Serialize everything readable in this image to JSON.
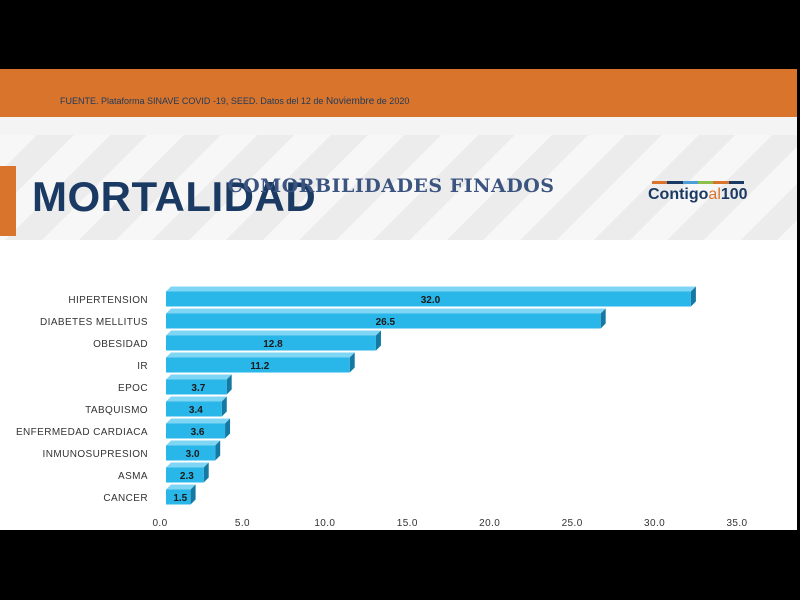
{
  "header": {
    "source_prefix": "FUENTE. Plataforma SINAVE COVID -19, SEED. Datos del 12 de ",
    "source_highlight": "Noviembre",
    "source_suffix": " de 2020",
    "title": "MORTALIDAD"
  },
  "logo": {
    "text_main": "Contigo",
    "text_accent": "al",
    "text_number": "100",
    "bar_colors": [
      "#d8742c",
      "#1b3a63",
      "#4a9fd6",
      "#8cc04a",
      "#d8742c",
      "#1b3a63"
    ]
  },
  "colors": {
    "bar_front": "#29b6e8",
    "bar_top": "#7fd6f4",
    "bar_side": "#1679a3",
    "title_navy": "#1b3a63",
    "accent_orange": "#d8742c"
  },
  "chart_data": {
    "type": "bar",
    "orientation": "horizontal",
    "title": "COMORBILIDADES FINADOS",
    "categories": [
      "HIPERTENSION",
      "DIABETES MELLITUS",
      "OBESIDAD",
      "IR",
      "EPOC",
      "TABQUISMO",
      "ENFERMEDAD CARDIACA",
      "INMUNOSUPRESION",
      "ASMA",
      "CANCER"
    ],
    "values": [
      32.0,
      26.5,
      12.8,
      11.2,
      3.7,
      3.4,
      3.6,
      3.0,
      2.3,
      1.5
    ],
    "value_labels": [
      "32.0",
      "26.5",
      "12.8",
      "11.2",
      "3.7",
      "3.4",
      "3.6",
      "3.0",
      "2.3",
      "1.5"
    ],
    "xlim": [
      0,
      35
    ],
    "ticks": [
      0,
      5,
      10,
      15,
      20,
      25,
      30,
      35
    ],
    "tick_labels": [
      "0.0",
      "5.0",
      "10.0",
      "15.0",
      "20.0",
      "25.0",
      "30.0",
      "35.0"
    ],
    "xlabel": "",
    "ylabel": "",
    "grid": false,
    "legend": "none"
  }
}
